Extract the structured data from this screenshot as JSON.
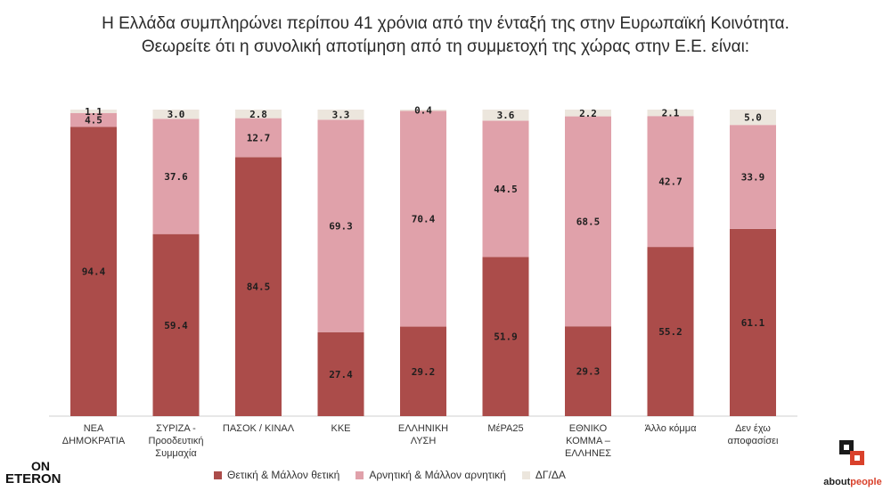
{
  "title": {
    "line1": "Η Ελλάδα συμπληρώνει περίπου 41 χρόνια από την ένταξή της στην Ευρωπαϊκή Κοινότητα.",
    "line2": "Θεωρείτε ότι η συνολική αποτίμηση από τη συμμετοχή της χώρας στην Ε.Ε. είναι:"
  },
  "chart_data": {
    "type": "bar",
    "stacked": true,
    "categories": [
      [
        "ΝΕΑ",
        "ΔΗΜΟΚΡΑΤΙΑ"
      ],
      [
        "ΣΥΡΙΖΑ -",
        "Προοδευτική",
        "Συμμαχία"
      ],
      [
        "ΠΑΣΟΚ / ΚΙΝΑΛ"
      ],
      [
        "ΚΚΕ"
      ],
      [
        "ΕΛΛΗΝΙΚΗ",
        "ΛΥΣΗ"
      ],
      [
        "ΜέΡΑ25"
      ],
      [
        "ΕΘΝΙΚΟ",
        "ΚΟΜΜΑ –",
        "ΕΛΛΗΝΕΣ"
      ],
      [
        "Άλλο κόμμα"
      ],
      [
        "Δεν έχω",
        "αποφασίσει"
      ]
    ],
    "series": [
      {
        "name": "Θετική & Μάλλον θετική",
        "color": "#ab4c4a",
        "values": [
          94.4,
          59.4,
          84.5,
          27.4,
          29.2,
          51.9,
          29.3,
          55.2,
          61.1
        ]
      },
      {
        "name": "Αρνητική & Μάλλον αρνητική",
        "color": "#e0a1aa",
        "values": [
          4.5,
          37.6,
          12.7,
          69.3,
          70.4,
          44.5,
          68.5,
          42.7,
          33.9
        ]
      },
      {
        "name": "ΔΓ/ΔΑ",
        "color": "#ece6dd",
        "values": [
          1.1,
          3.0,
          2.8,
          3.3,
          0.4,
          3.6,
          2.2,
          2.1,
          5.0
        ]
      }
    ],
    "ylim": [
      0,
      100
    ],
    "legend_position": "bottom",
    "grid": false
  },
  "logos": {
    "left_top": "ON",
    "left_bottom": "ETERON",
    "right_prefix": "about",
    "right_suffix": "people"
  }
}
